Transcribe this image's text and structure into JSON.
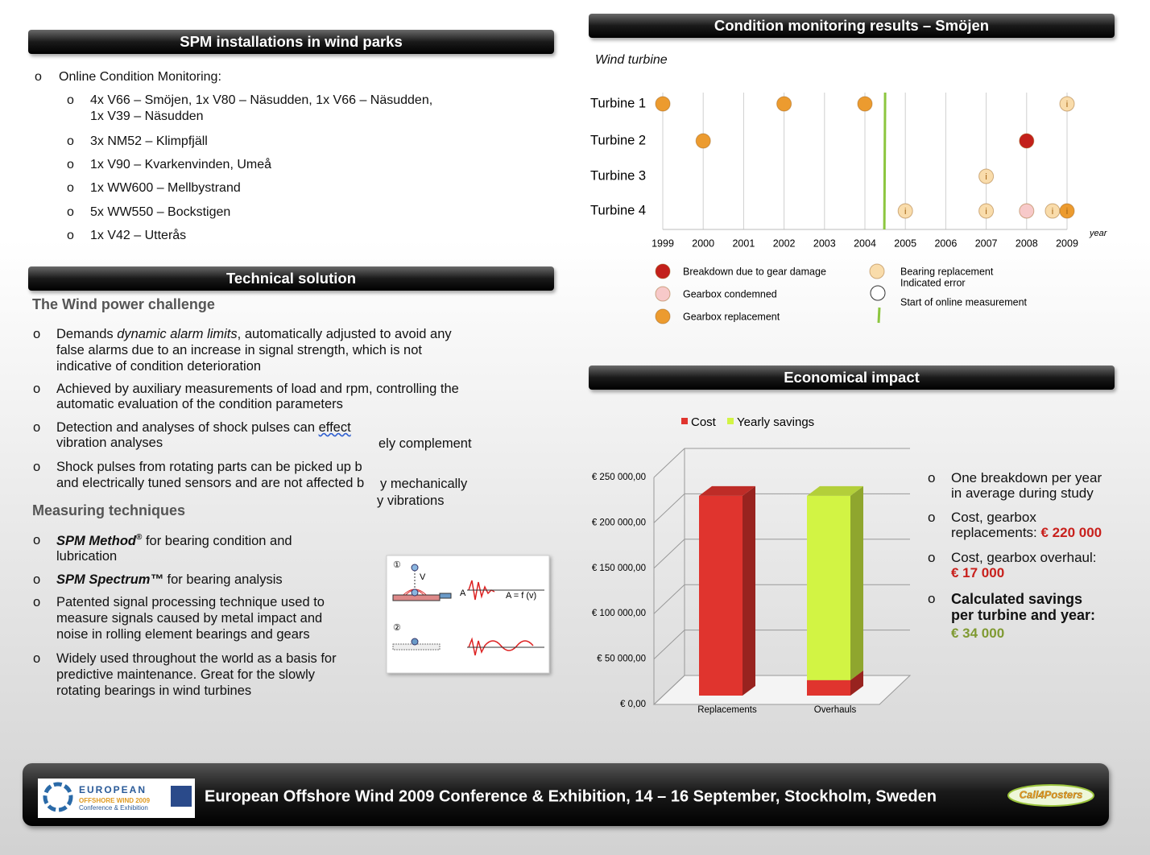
{
  "bullet": "o",
  "installations": {
    "title": "SPM installations in wind parks",
    "item": "Online Condition Monitoring:",
    "subitems": [
      [
        "4x V66 – Smöjen, 1x V80 – Näsudden, 1x V66 – Näsudden,",
        "1x V39 – Näsudden"
      ],
      [
        "3x NM52 – Klimpfjäll"
      ],
      [
        "1x V90 – Kvarkenvinden, Umeå"
      ],
      [
        "1x WW600 – Mellbystrand"
      ],
      [
        "5x WW550 – Bockstigen"
      ],
      [
        "1x V42 – Utterås"
      ]
    ]
  },
  "technical": {
    "title": "Technical solution",
    "challenge": {
      "heading": "The Wind power challenge",
      "bullets": [
        [
          [
            {
              "text": "Demands "
            },
            {
              "text": "dynamic alarm limits",
              "style": "em"
            },
            {
              "text": ", automatically adjusted to avoid any"
            }
          ],
          "false alarms due to an increase in signal strength, which is not",
          "indicative of condition deterioration"
        ],
        [
          "Achieved by auxiliary measurements of load and rpm, controlling the",
          "automatic evaluation of the condition parameters"
        ],
        [
          [
            {
              "text": "Detection and analyses of shock pulses can "
            },
            {
              "text": "effect",
              "style": "spell"
            }
          ],
          "vibration analyses"
        ],
        [
          "Shock pulses from rotating parts can be picked up b",
          "and electrically tuned sensors and are not affected b"
        ]
      ]
    },
    "fragments": [
      "ely complement",
      "y mechanically",
      "y vibrations"
    ],
    "measuring": {
      "heading": "Measuring techniques",
      "bullets": [
        [
          [
            {
              "text": "SPM Method",
              "style": "strong-em"
            },
            {
              "text": "®",
              "style": "sup"
            },
            {
              "text": " for bearing condition and"
            }
          ],
          "lubrication"
        ],
        [
          [
            {
              "text": "SPM Spectrum™",
              "style": "strong-em"
            },
            {
              "text": " for bearing analysis"
            }
          ]
        ],
        [
          "Patented signal processing technique used to",
          "measure signals caused by metal impact and",
          "noise in rolling element bearings and gears"
        ],
        [
          "Widely used throughout the world as a basis for",
          "predictive maintenance. Great for the slowly",
          "rotating bearings in wind turbines"
        ]
      ]
    },
    "diagram": {
      "labels": [
        "①",
        "V",
        "A",
        "A = f (v)",
        "②"
      ]
    }
  },
  "condition": {
    "title": "Condition monitoring results – Smöjen",
    "subtitle": "Wind turbine",
    "xlabel": "year",
    "xlim": [
      1999,
      2009
    ],
    "xticks": [
      1999,
      2000,
      2001,
      2002,
      2003,
      2004,
      2005,
      2006,
      2007,
      2008,
      2009
    ],
    "start": 2004.5,
    "turbines": [
      {
        "name": "Turbine 1",
        "events": [
          {
            "year": 1999,
            "kind": 2
          },
          {
            "year": 2002,
            "kind": 2
          },
          {
            "year": 2004,
            "kind": 2
          },
          {
            "year": 2009,
            "kind": 3,
            "label": "i"
          }
        ]
      },
      {
        "name": "Turbine 2",
        "events": [
          {
            "year": 2000,
            "kind": 2
          },
          {
            "year": 2008,
            "kind": 0
          }
        ]
      },
      {
        "name": "Turbine 3",
        "events": [
          {
            "year": 2007,
            "kind": 3,
            "label": "i"
          }
        ]
      },
      {
        "name": "Turbine 4",
        "events": [
          {
            "year": 2005,
            "kind": 3,
            "label": "i"
          },
          {
            "year": 2007,
            "kind": 3,
            "label": "i"
          },
          {
            "year": 2008,
            "kind": 1
          },
          {
            "year": 2008.64,
            "kind": 3,
            "label": "i"
          },
          {
            "year": 2009,
            "kind": 2,
            "label": "i"
          }
        ]
      }
    ],
    "legend": [
      {
        "label": "Breakdown due to gear damage",
        "color": "#c3201b"
      },
      {
        "label": "Gearbox condemned",
        "color": "#f7c9c9"
      },
      {
        "label": "Gearbox replacement",
        "color": "#ec9b2f"
      },
      {
        "label": "Bearing replacement",
        "color": "#f9dcab"
      },
      {
        "label": "Indicated error",
        "color": "#ffffff"
      },
      {
        "label": "Start of online measurement",
        "color": "#8cc63f"
      }
    ]
  },
  "economic": {
    "title": "Economical impact",
    "chart": {
      "type": "bar",
      "stacked": true,
      "categories": [
        "Replacements",
        "Overhauls"
      ],
      "series": [
        {
          "name": "Cost",
          "color": "#e0342e",
          "values": [
            220000,
            17000
          ]
        },
        {
          "name": "Yearly savings",
          "color": "#d2f444",
          "values": [
            null,
            203000
          ]
        }
      ],
      "ylim": [
        0,
        250000
      ],
      "yticks": [
        {
          "value": 0,
          "label": "€ 0,00"
        },
        {
          "value": 50000,
          "label": "€ 50 000,00"
        },
        {
          "value": 100000,
          "label": "€ 100 000,00"
        },
        {
          "value": 150000,
          "label": "€ 150 000,00"
        },
        {
          "value": 200000,
          "label": "€ 200 000,00"
        },
        {
          "value": 250000,
          "label": "€ 250 000,00"
        }
      ]
    },
    "bullets": [
      [
        "One breakdown per year",
        "in average during study"
      ],
      [
        "Cost, gearbox",
        [
          {
            "text": "replacements: "
          },
          {
            "text": "€ 220 000",
            "style": "red"
          }
        ]
      ],
      [
        "Cost, gearbox overhaul:",
        [
          {
            "text": "€ 17 000",
            "style": "red"
          }
        ]
      ],
      [
        [
          {
            "text": "Calculated savings",
            "style": "bold"
          }
        ],
        [
          {
            "text": "per turbine and year:",
            "style": "bold"
          }
        ],
        [
          {
            "text": "€ 34 000",
            "style": "green"
          }
        ]
      ]
    ]
  },
  "footer": {
    "logo": [
      "EUROPEAN",
      "OFFSHORE WIND 2009",
      "Conference & Exhibition"
    ],
    "text": "European Offshore Wind 2009 Conference & Exhibition, 14 – 16 September, Stockholm, Sweden",
    "badge": "Call4Posters"
  }
}
